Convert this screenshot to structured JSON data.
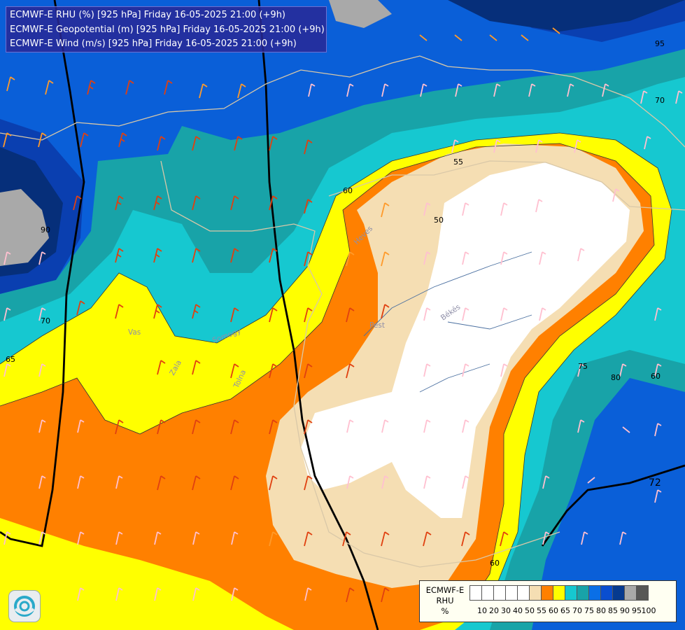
{
  "header": {
    "line1": "ECMWF-E RHU (%) [925 hPa] Friday 16-05-2025 21:00 (+9h)",
    "line2": "ECMWF-E Geopotential (m) [925 hPa] Friday 16-05-2025 21:00 (+9h)",
    "line3": "ECMWF-E Wind (m/s) [925 hPa] Friday 16-05-2025 21:00 (+9h)"
  },
  "legend": {
    "title_line1": "ECMWF-E",
    "title_line2": "RHU",
    "title_line3": "%",
    "ticks": [
      "10",
      "20",
      "30",
      "40",
      "50",
      "55",
      "60",
      "65",
      "70",
      "75",
      "80",
      "85",
      "90",
      "95",
      "100"
    ],
    "colors": [
      "#ffffff",
      "#ffffff",
      "#ffffff",
      "#ffffff",
      "#ffffff",
      "#f5deb3",
      "#ff8000",
      "#ffff00",
      "#16c8d0",
      "#18a3a8",
      "#0a6fe6",
      "#0a4ed0",
      "#063a8f",
      "#a9a9a9",
      "#575757"
    ]
  },
  "contour_labels": {
    "l55": "55",
    "l60a": "60",
    "l50": "50",
    "l60b": "60",
    "l60c": "60",
    "l70a": "70",
    "l65a": "65",
    "l70b": "70",
    "l75": "75",
    "l80": "80",
    "l90": "90",
    "l95": "95",
    "l72": "72"
  },
  "places": {
    "heves": "Heves",
    "pest": "Pest",
    "bekes": "Békés",
    "vas": "Vas",
    "zala": "Zala",
    "somogy": "Somogy",
    "tolna": "Tolna"
  },
  "colors": {
    "white": "#ffffff",
    "wheat": "#f5deb3",
    "orange": "#ff8000",
    "yellow": "#ffff00",
    "cyan": "#16c8d0",
    "teal": "#18a3a8",
    "blue": "#0a6fe6",
    "darkblue": "#063a8f",
    "grey": "#a9a9a9"
  }
}
